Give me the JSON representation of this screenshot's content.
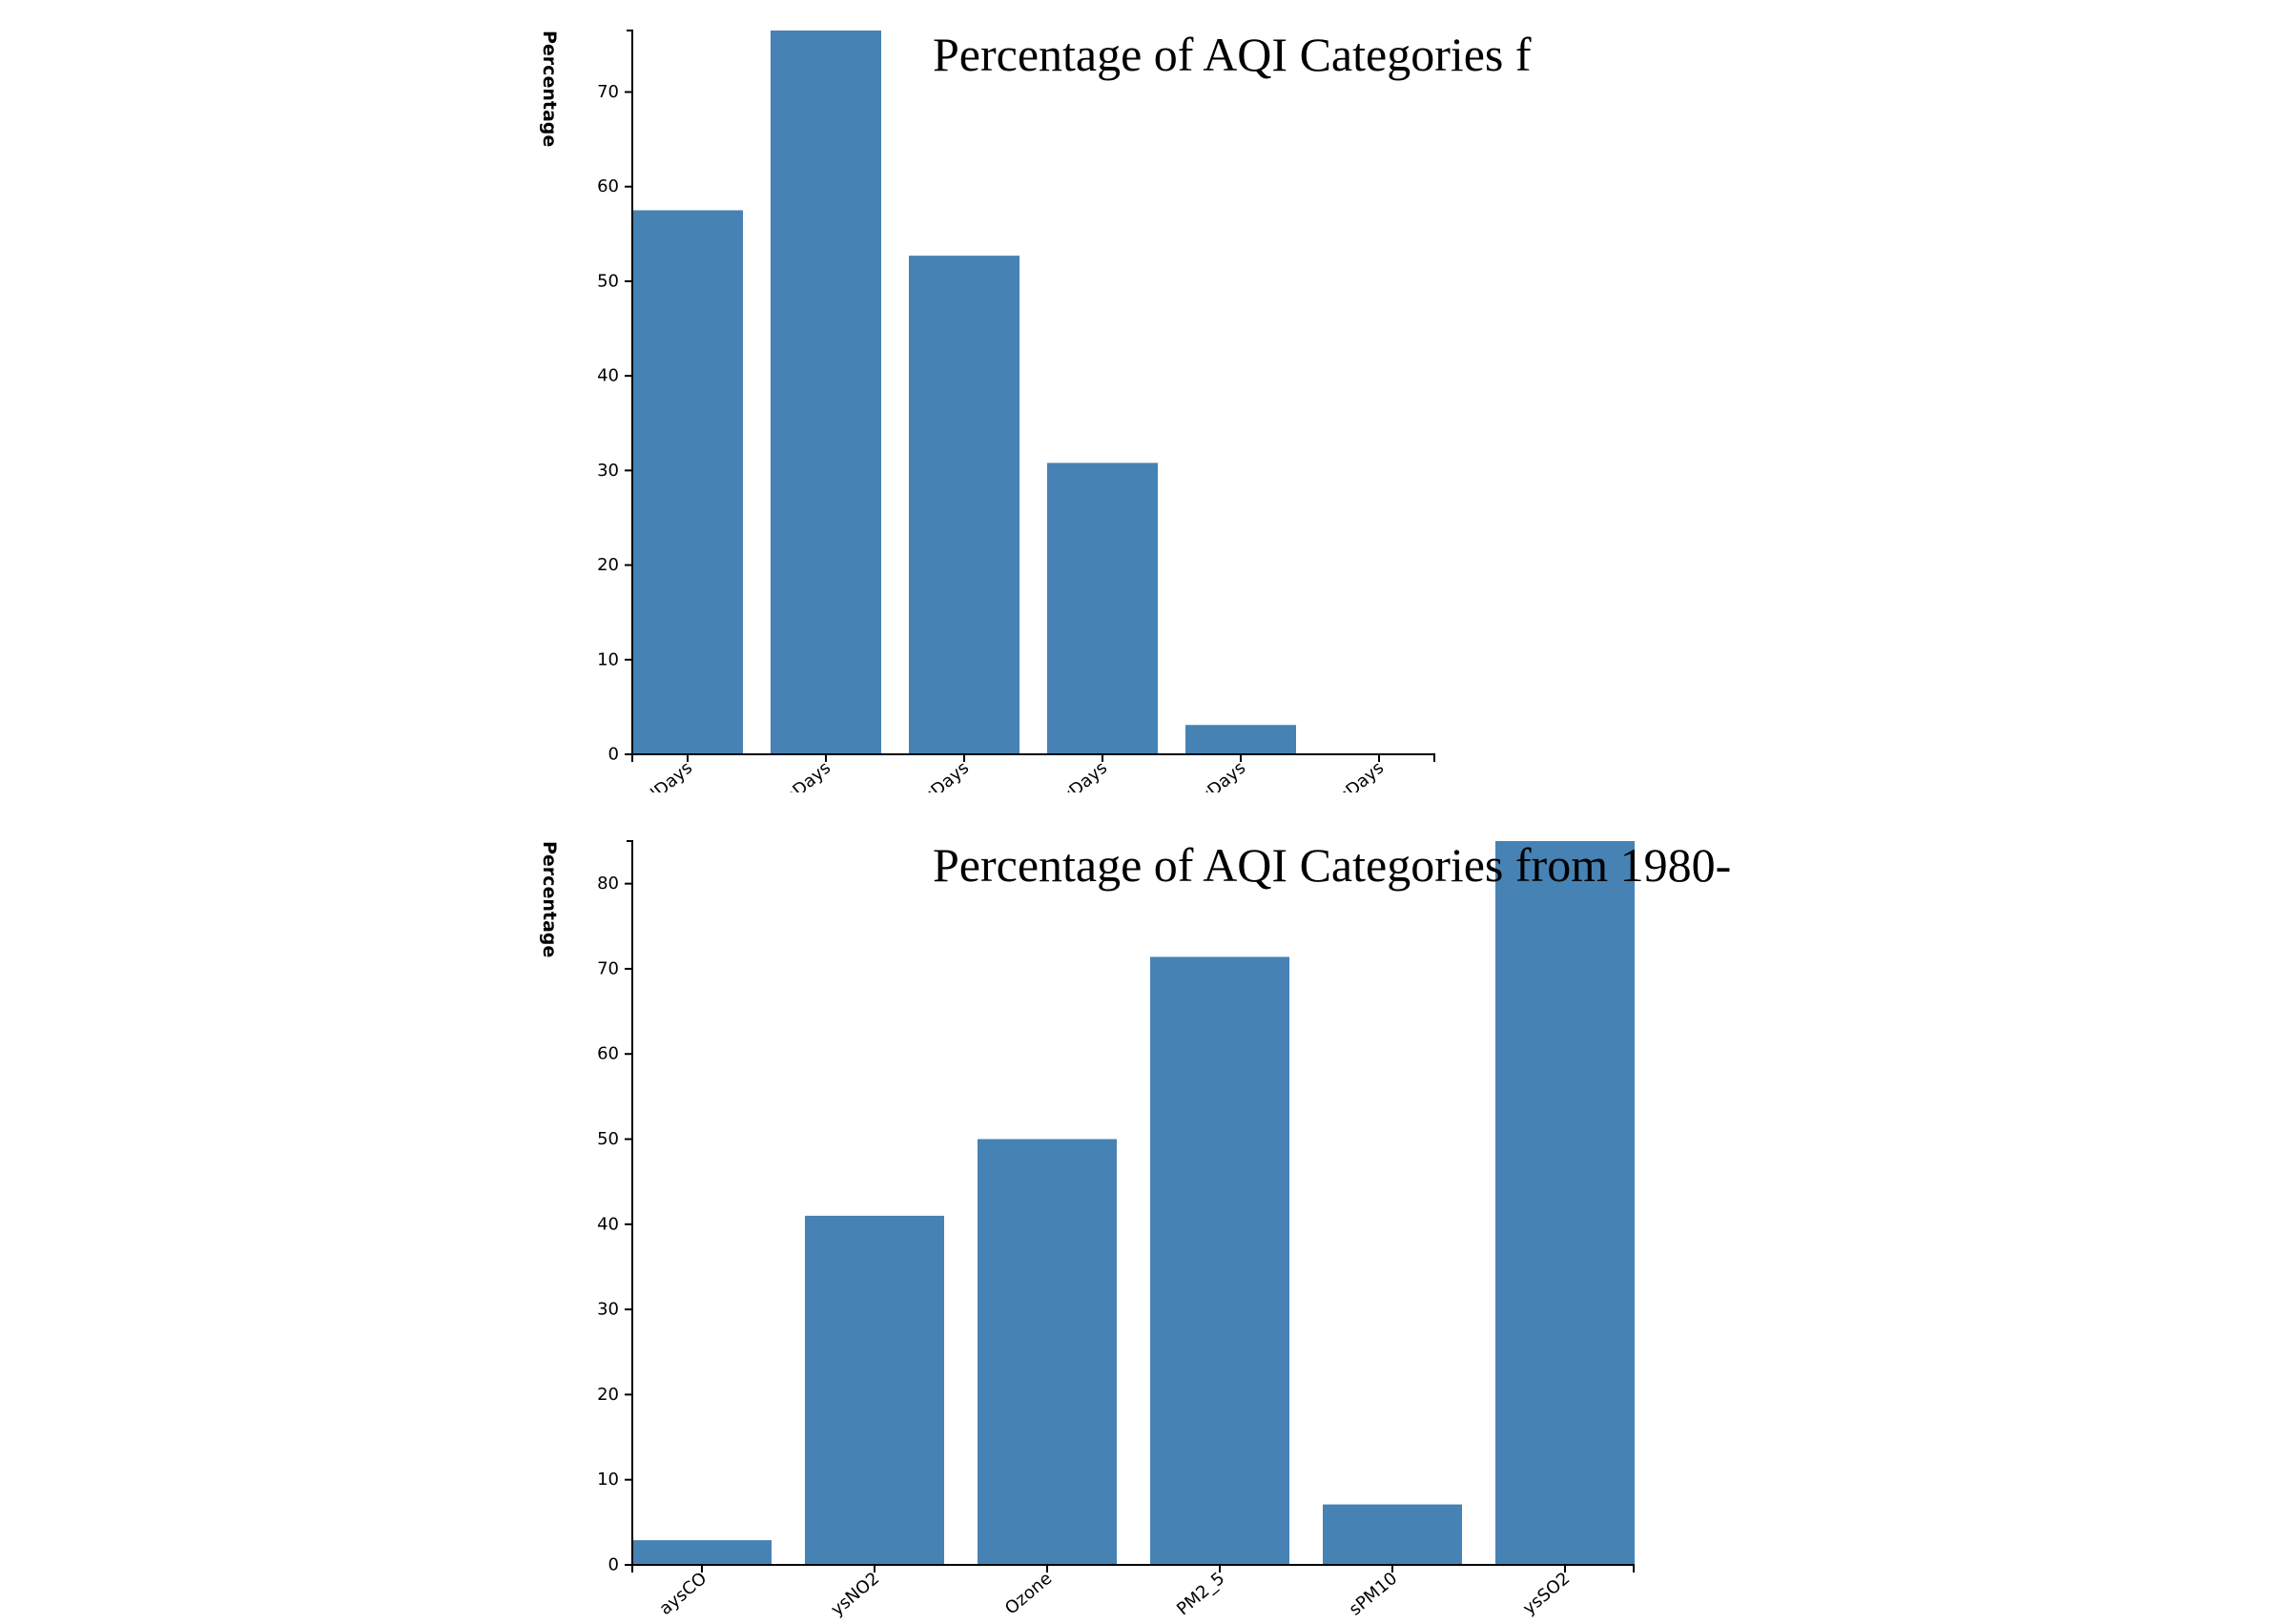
{
  "colors": {
    "bar": "#4682b4",
    "axis": "#000000",
    "text": "#000000"
  },
  "chart_data": [
    {
      "type": "bar",
      "title": "Percentage of AQI Categories f",
      "ylabel": "Percentage",
      "xlabel": "",
      "ylim": [
        0,
        76.5
      ],
      "yticks": [
        0,
        10,
        20,
        30,
        40,
        50,
        60,
        70
      ],
      "categories": [
        "dDays",
        "eDays",
        "sDays",
        "tyDays",
        "lyDays",
        "sDays"
      ],
      "values": [
        57.5,
        76.5,
        52.7,
        30.8,
        3.1,
        0
      ],
      "grid": false
    },
    {
      "type": "bar",
      "title": "Percentage of AQI Categories from 1980-",
      "ylabel": "Percentage",
      "xlabel": "",
      "ylim": [
        0,
        85
      ],
      "yticks": [
        0,
        10,
        20,
        30,
        40,
        50,
        60,
        70,
        80
      ],
      "categories": [
        "aysCO",
        "ysNO2",
        "Ozone",
        "PM2_5",
        "sPM10",
        "ysSO2"
      ],
      "values": [
        2.9,
        41,
        50,
        71.4,
        7.1,
        85
      ],
      "grid": false
    }
  ]
}
